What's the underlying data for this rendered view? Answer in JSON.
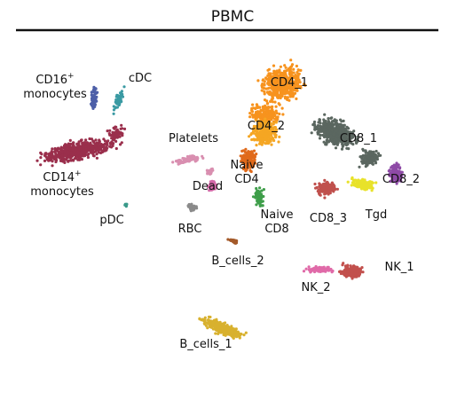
{
  "chart_data": {
    "type": "scatter",
    "title": "PBMC",
    "xlabel": "",
    "ylabel": "",
    "axes_visible": false,
    "grid": false,
    "legend": "none (clusters labeled on plot)",
    "clusters": [
      {
        "name": "CD4_1",
        "color": "#f7931e"
      },
      {
        "name": "CD4_2",
        "color": "#f5a623"
      },
      {
        "name": "CD8_1",
        "color": "#5b6760"
      },
      {
        "name": "CD8_2",
        "color": "#8e4aa6"
      },
      {
        "name": "CD8_3",
        "color": "#c0504d"
      },
      {
        "name": "Tgd",
        "color": "#e8e22a"
      },
      {
        "name": "Naive CD4",
        "color": "#e06a1b"
      },
      {
        "name": "Naive CD8",
        "color": "#3f9e4a"
      },
      {
        "name": "CD14+ monocytes",
        "color": "#9a2f4c"
      },
      {
        "name": "CD16+ monocytes",
        "color": "#4d5fa8"
      },
      {
        "name": "cDC",
        "color": "#3a9aa3"
      },
      {
        "name": "pDC",
        "color": "#3a9a8a"
      },
      {
        "name": "Platelets",
        "color": "#d98fb0"
      },
      {
        "name": "Dead",
        "color": "#d36aa8"
      },
      {
        "name": "RBC",
        "color": "#8a8a8a"
      },
      {
        "name": "B_cells_1",
        "color": "#d8b12e"
      },
      {
        "name": "B_cells_2",
        "color": "#a45a2a"
      },
      {
        "name": "NK_1",
        "color": "#c2504d"
      },
      {
        "name": "NK_2",
        "color": "#e06aa8"
      }
    ],
    "labels": [
      {
        "id": "cd16",
        "text": "CD16",
        "sup": "+",
        "line2": "monocytes"
      },
      {
        "id": "cdc",
        "text": "cDC"
      },
      {
        "id": "cd14",
        "text": "CD14",
        "sup": "+",
        "line2": "monocytes"
      },
      {
        "id": "pdc",
        "text": "pDC"
      },
      {
        "id": "cd4_1",
        "text": "CD4_1"
      },
      {
        "id": "cd4_2",
        "text": "CD4_2"
      },
      {
        "id": "platelets",
        "text": "Platelets"
      },
      {
        "id": "cd8_1",
        "text": "CD8_1"
      },
      {
        "id": "naive4",
        "text": "Naive",
        "line2": "CD4"
      },
      {
        "id": "cd8_2",
        "text": "CD8_2"
      },
      {
        "id": "dead",
        "text": "Dead"
      },
      {
        "id": "cd8_3",
        "text": "CD8_3"
      },
      {
        "id": "tgd",
        "text": "Tgd"
      },
      {
        "id": "naive8",
        "text": "Naive",
        "line2": "CD8"
      },
      {
        "id": "rbc",
        "text": "RBC"
      },
      {
        "id": "bc2",
        "text": "B_cells_2"
      },
      {
        "id": "nk1",
        "text": "NK_1"
      },
      {
        "id": "nk2",
        "text": "NK_2"
      },
      {
        "id": "bc1",
        "text": "B_cells_1"
      }
    ]
  }
}
